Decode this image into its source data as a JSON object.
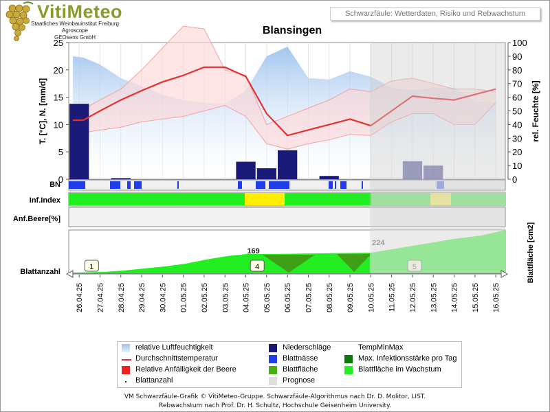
{
  "brand": {
    "name": "VitiMeteo",
    "institute": [
      "Staatliches Weinbauinstitut Freiburg",
      "Agroscope",
      "GEOsens GmbH"
    ]
  },
  "headline": "Schwarzfäule: Wetterdaten, Risiko und Rebwachstum",
  "chart_data": {
    "type": "line",
    "title": "Blansingen",
    "x": [
      "26.04.25",
      "27.04.25",
      "28.04.25",
      "29.04.25",
      "30.04.25",
      "01.05.25",
      "02.05.25",
      "03.05.25",
      "04.05.25",
      "05.05.25",
      "06.05.25",
      "07.05.25",
      "08.05.25",
      "09.05.25",
      "10.05.25",
      "11.05.25",
      "12.05.25",
      "13.05.25",
      "14.05.25",
      "15.05.25",
      "16.05.25"
    ],
    "ylabel": "T. [°C], N. [mm/d]",
    "y2label": "rel. Feuchte [%]",
    "ylim": [
      0,
      25
    ],
    "y2lim": [
      0,
      100
    ],
    "yticks": [
      "0",
      "5",
      "10",
      "15",
      "20",
      "25"
    ],
    "y2ticks": [
      "0",
      "10",
      "20",
      "30",
      "40",
      "50",
      "60",
      "70",
      "80",
      "90",
      "100"
    ],
    "forecast_start": "10.05.25",
    "series": [
      {
        "name": "relative Luftfeuchtigkeit",
        "unit": "%",
        "x": [
          25.7,
          26.2,
          27,
          28,
          29,
          30,
          31,
          32,
          33,
          34,
          35,
          36,
          37,
          38,
          39,
          40,
          41,
          42,
          43,
          44,
          45,
          46
        ],
        "values": [
          90,
          89,
          84,
          74,
          68,
          62,
          58,
          56,
          55,
          65,
          90,
          97,
          74,
          73,
          79,
          75,
          67,
          65,
          67,
          67,
          57,
          56
        ]
      },
      {
        "name": "Durchschnittstemperatur",
        "unit": "°C",
        "x": [
          25.7,
          26.2,
          27,
          28,
          29,
          30,
          31,
          32,
          33,
          34,
          35,
          36,
          37,
          38,
          39,
          40,
          41,
          42,
          43,
          44,
          45,
          46
        ],
        "values": [
          10.8,
          10.8,
          12.5,
          14.5,
          16.2,
          17.8,
          19,
          20.5,
          20.5,
          18.8,
          12.0,
          8.0,
          9.0,
          10.0,
          11.0,
          9.8,
          12.5,
          15.2,
          14.8,
          14.5,
          15.5,
          16.5
        ]
      },
      {
        "name": "TempMinMax",
        "unit": "°C",
        "x": [
          25.7,
          26.2,
          27,
          28,
          29,
          30,
          31,
          32,
          33,
          34,
          35,
          36,
          37,
          38,
          39,
          40,
          41,
          42,
          43,
          44,
          45,
          46
        ],
        "min": [
          8.8,
          8.5,
          9.0,
          9.5,
          10.5,
          11.0,
          11.5,
          12.5,
          13.5,
          11.5,
          6.5,
          5.5,
          6.5,
          7.2,
          8.2,
          8.0,
          10.5,
          12.0,
          12.0,
          10.0,
          10.0,
          14.0
        ],
        "max": [
          12.8,
          12.8,
          14.5,
          16.5,
          20.0,
          24.0,
          28.0,
          27.5,
          20.0,
          19.0,
          10.0,
          11.5,
          13.0,
          14.5,
          16.5,
          16.0,
          18.0,
          18.5,
          17.5,
          16.5,
          16.5,
          16.0
        ]
      },
      {
        "name": "Niederschläge",
        "unit": "mm/d",
        "x": [
          26,
          27,
          28,
          34,
          35,
          36,
          37,
          38,
          39,
          40,
          41,
          42,
          43,
          44,
          45,
          46
        ],
        "values": [
          13.8,
          0,
          0.2,
          3.2,
          2,
          5.3,
          0,
          0.6,
          0,
          0,
          0,
          3.3,
          2.5,
          0,
          0,
          0
        ]
      }
    ],
    "rows": [
      {
        "label": "BN",
        "series": "Blattnässe"
      },
      {
        "label": "Inf.Index",
        "series": "Max. Infektionsstärke pro Tag"
      },
      {
        "label": "Anf.Beere[%]",
        "series": "Relative Anfälligkeit der Beere"
      },
      {
        "label": "Blattanzahl",
        "series": "Blattfläche"
      }
    ],
    "leaf_area": {
      "axis_label": "Blattfläche [cm2]",
      "annotations": [
        {
          "x": 34.4,
          "value": "169"
        },
        {
          "x": 40.4,
          "value": "224"
        }
      ],
      "leaf_counts": [
        {
          "x": 27.1,
          "value": "1"
        },
        {
          "x": 35.05,
          "value": "4"
        },
        {
          "x": 42.6,
          "value": "5"
        }
      ]
    },
    "legend": [
      {
        "name": "relative Luftfeuchtigkeit",
        "color": "#a7c9f0"
      },
      {
        "name": "Niederschläge",
        "color": "#1a1a78"
      },
      {
        "name": "TempMinMax",
        "color": "#ffd8d8"
      },
      {
        "name": "Durchschnittstemperatur",
        "color": "#e53030"
      },
      {
        "name": "Blattnässe",
        "color": "#1f3de8"
      },
      {
        "name": "Max. Infektionsstärke pro Tag",
        "color": "#0a7a0a"
      },
      {
        "name": "Relative Anfälligkeit der Beere",
        "color": "#f02020"
      },
      {
        "name": "Blattfläche",
        "color": "#44b014"
      },
      {
        "name": "Blattfläche im Wachstum",
        "color": "#22ee22"
      },
      {
        "name": "Blattanzahl",
        "color": "#333333"
      },
      {
        "name": "Prognose",
        "color": "#dedede"
      }
    ],
    "legend_position": "bottom"
  },
  "footer": [
    "VM Schwarzfäule-Grafik © VitiMeteo-Gruppe. Schwarzfäule-Algorithmus nach Dr. D. Molitor, LIST.",
    "Rebwachstum nach Prof. Dr. H. Schultz, Hochschule Geisenheim University."
  ]
}
